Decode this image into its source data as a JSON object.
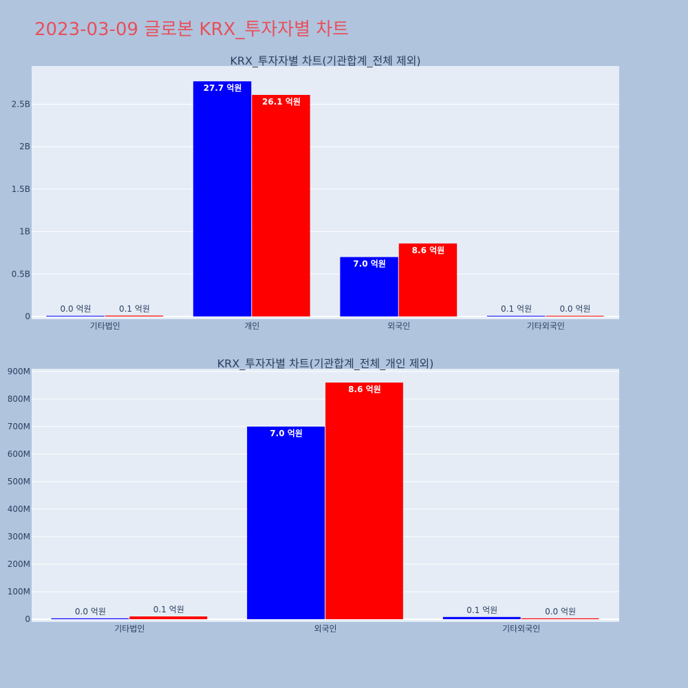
{
  "page": {
    "title": "2023-03-09 글로본 KRX_투자자별 차트"
  },
  "colors": {
    "background": "#b0c4de",
    "plot_bg": "#e5ecf6",
    "buy": "#0000ff",
    "sell": "#ff0000",
    "title": "#e8505b"
  },
  "chart_data": [
    {
      "type": "bar",
      "title": "KRX_투자자별 차트(기관합계_전체 제외)",
      "categories": [
        "기타법인",
        "개인",
        "외국인",
        "기타외국인"
      ],
      "series": [
        {
          "color": "#0000ff",
          "values": [
            3000000,
            2770000000,
            700000000,
            8000000
          ],
          "labels": [
            "0.0 억원",
            "27.7 억원",
            "7.0 억원",
            "0.1 억원"
          ]
        },
        {
          "color": "#ff0000",
          "values": [
            10000000,
            2610000000,
            860000000,
            3000000
          ],
          "labels": [
            "0.1 억원",
            "26.1 억원",
            "8.6 억원",
            "0.0 억원"
          ]
        }
      ],
      "ylim": [
        0,
        2.95
      ],
      "yscale": 1000000000,
      "yticks": [
        0,
        0.5,
        1,
        1.5,
        2,
        2.5
      ],
      "ytick_labels": [
        "0",
        "0.5B",
        "1B",
        "1.5B",
        "2B",
        "2.5B"
      ],
      "grid": true
    },
    {
      "type": "bar",
      "title": "KRX_투자자별 차트(기관합계_전체_개인 제외)",
      "categories": [
        "기타법인",
        "외국인",
        "기타외국인"
      ],
      "series": [
        {
          "color": "#0000ff",
          "values": [
            3000000,
            700000000,
            8000000
          ],
          "labels": [
            "0.0 억원",
            "7.0 억원",
            "0.1 억원"
          ]
        },
        {
          "color": "#ff0000",
          "values": [
            10000000,
            860000000,
            3000000
          ],
          "labels": [
            "0.1 억원",
            "8.6 억원",
            "0.0 억원"
          ]
        }
      ],
      "ylim": [
        0,
        910
      ],
      "yscale": 1000000,
      "yticks": [
        0,
        100,
        200,
        300,
        400,
        500,
        600,
        700,
        800,
        900
      ],
      "ytick_labels": [
        "0",
        "100M",
        "200M",
        "300M",
        "400M",
        "500M",
        "600M",
        "700M",
        "800M",
        "900M"
      ],
      "grid": true
    }
  ]
}
